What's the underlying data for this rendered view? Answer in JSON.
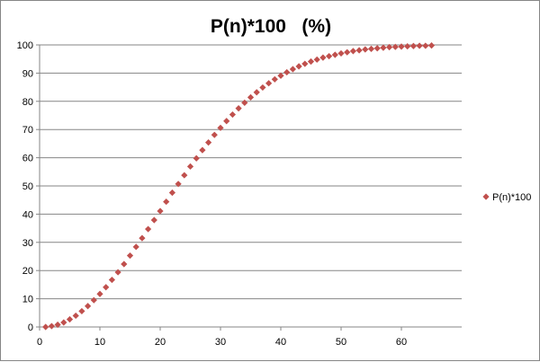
{
  "chart_data": {
    "type": "scatter",
    "title": "P(n)*100   (%)",
    "xlabel": "",
    "ylabel": "",
    "xlim": [
      0,
      70
    ],
    "ylim": [
      0,
      100
    ],
    "x_ticks": [
      0,
      10,
      20,
      30,
      40,
      50,
      60
    ],
    "y_ticks": [
      0,
      10,
      20,
      30,
      40,
      50,
      60,
      70,
      80,
      90,
      100
    ],
    "grid": "horizontal",
    "legend": {
      "position": "right",
      "entries": [
        "P(n)*100"
      ]
    },
    "marker": "diamond",
    "color": "#C0504D",
    "series": [
      {
        "name": "P(n)*100",
        "x": [
          1,
          2,
          3,
          4,
          5,
          6,
          7,
          8,
          9,
          10,
          11,
          12,
          13,
          14,
          15,
          16,
          17,
          18,
          19,
          20,
          21,
          22,
          23,
          24,
          25,
          26,
          27,
          28,
          29,
          30,
          31,
          32,
          33,
          34,
          35,
          36,
          37,
          38,
          39,
          40,
          41,
          42,
          43,
          44,
          45,
          46,
          47,
          48,
          49,
          50,
          51,
          52,
          53,
          54,
          55,
          56,
          57,
          58,
          59,
          60,
          61,
          62,
          63,
          64,
          65
        ],
        "values": [
          0,
          0.3,
          0.8,
          1.6,
          2.7,
          4.0,
          5.6,
          7.4,
          9.5,
          11.7,
          14.1,
          16.7,
          19.4,
          22.3,
          25.3,
          28.4,
          31.5,
          34.7,
          37.9,
          41.1,
          44.4,
          47.6,
          50.7,
          53.8,
          56.9,
          59.8,
          62.7,
          65.4,
          68.1,
          70.6,
          73.0,
          75.3,
          77.5,
          79.5,
          81.4,
          83.2,
          84.9,
          86.4,
          87.8,
          89.1,
          90.3,
          91.4,
          92.4,
          93.3,
          94.1,
          94.8,
          95.5,
          96.0,
          96.5,
          97.0,
          97.4,
          97.8,
          98.1,
          98.4,
          98.6,
          98.8,
          99.0,
          99.2,
          99.3,
          99.4,
          99.5,
          99.6,
          99.7,
          99.7,
          99.8
        ]
      }
    ]
  }
}
